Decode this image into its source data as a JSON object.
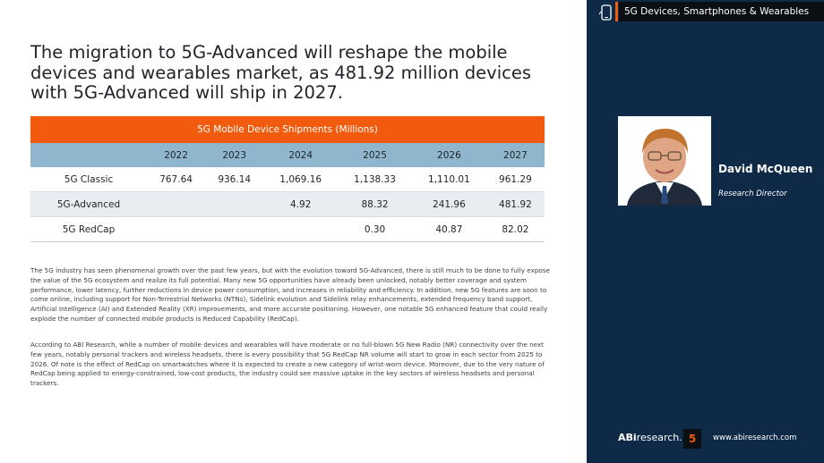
{
  "header": {
    "category_tag": "5G Devices, Smartphones & Wearables",
    "headline": "The migration to 5G-Advanced will reshape the mobile devices and wearables market, as 481.92 million devices with 5G-Advanced will ship in 2027."
  },
  "table": {
    "title": "5G Mobile Device Shipments (Millions)",
    "years": [
      "2022",
      "2023",
      "2024",
      "2025",
      "2026",
      "2027"
    ],
    "rows": [
      {
        "label": "5G Classic",
        "values": [
          "767.64",
          "936.14",
          "1,069.16",
          "1,138.33",
          "1,110.01",
          "961.29"
        ]
      },
      {
        "label": "5G-Advanced",
        "values": [
          "",
          "",
          "4.92",
          "88.32",
          "241.96",
          "481.92"
        ]
      },
      {
        "label": "5G RedCap",
        "values": [
          "",
          "",
          "",
          "0.30",
          "40.87",
          "82.02"
        ]
      }
    ]
  },
  "body": {
    "p1": "The 5G industry has seen phenomenal growth over the past few years, but with the evolution toward 5G-Advanced, there is still much to be done to fully expose the value of the 5G ecosystem and realize its full potential. Many new 5G opportunities have already been unlocked, notably better coverage and system performance, lower latency, further reductions in device power consumption, and increases in reliability and efficiency. In addition, new 5G features are soon to come online, including support for Non-Terrestrial Networks (NTNs), Sidelink evolution and Sidelink relay enhancements, extended frequency band support, Artificial Intelligence (AI) and Extended Reality (XR) improvements, and more accurate positioning. However, one notable 5G enhanced feature that could really explode the number of connected mobile products is Reduced Capability (RedCap).",
    "p2": "According to ABI Research, while a number of mobile devices and wearables will have moderate or no full-blown 5G New Radio (NR) connectivity over the next few years, notably personal trackers and wireless headsets, there is every possibility that 5G RedCap NR volume will start to grow in each sector from 2025 to 2026. Of note is the effect of RedCap on smartwatches where it is expected to create a new category of wrist-worn device. Moreover, due to the very nature of RedCap being applied to energy-constrained, low-cost products, the industry could see massive uptake in the key sectors of wireless headsets and personal trackers."
  },
  "author": {
    "name": "David McQueen",
    "title": "Research Director"
  },
  "footer": {
    "logo_bold": "ABi",
    "logo_rest": "research.",
    "page_number": "5",
    "url": "www.abiresearch.com"
  },
  "colors": {
    "accent": "#f25a0d",
    "sidebar": "#0e2a47",
    "table_header": "#8fb6cc"
  }
}
